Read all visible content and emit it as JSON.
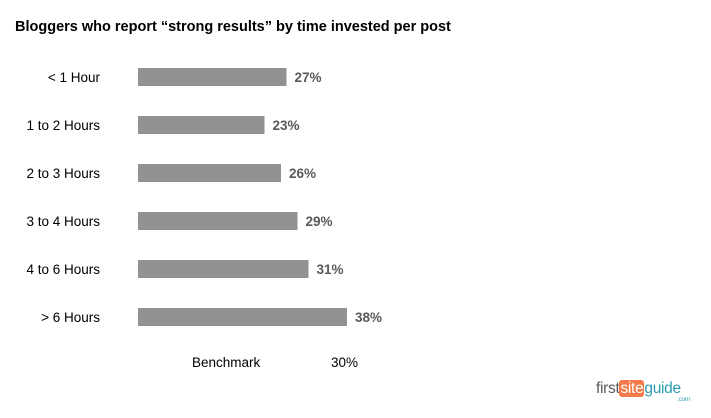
{
  "chart_data": {
    "type": "bar",
    "orientation": "horizontal",
    "title": "Bloggers who report “strong results” by time invested per post",
    "categories": [
      "< 1 Hour",
      "1 to 2 Hours",
      "2 to 3 Hours",
      "3 to 4 Hours",
      "4 to 6 Hours",
      "> 6 Hours"
    ],
    "values": [
      27,
      23,
      26,
      29,
      31,
      38
    ],
    "value_labels": [
      "27%",
      "23%",
      "26%",
      "29%",
      "31%",
      "38%"
    ],
    "unit": "%",
    "xlim": [
      0,
      100
    ],
    "bar_color": "#939191",
    "value_label_color": "#595959",
    "grid": false,
    "legend": "none"
  },
  "benchmark": {
    "label": "Benchmark",
    "value": "30%"
  },
  "logo": {
    "first": "first",
    "site": "site",
    "guide": "guide",
    "com": ".com",
    "colors": {
      "first": "#5a5a5a",
      "site_bg": "#f47a4a",
      "guide": "#2c9bb0"
    }
  }
}
